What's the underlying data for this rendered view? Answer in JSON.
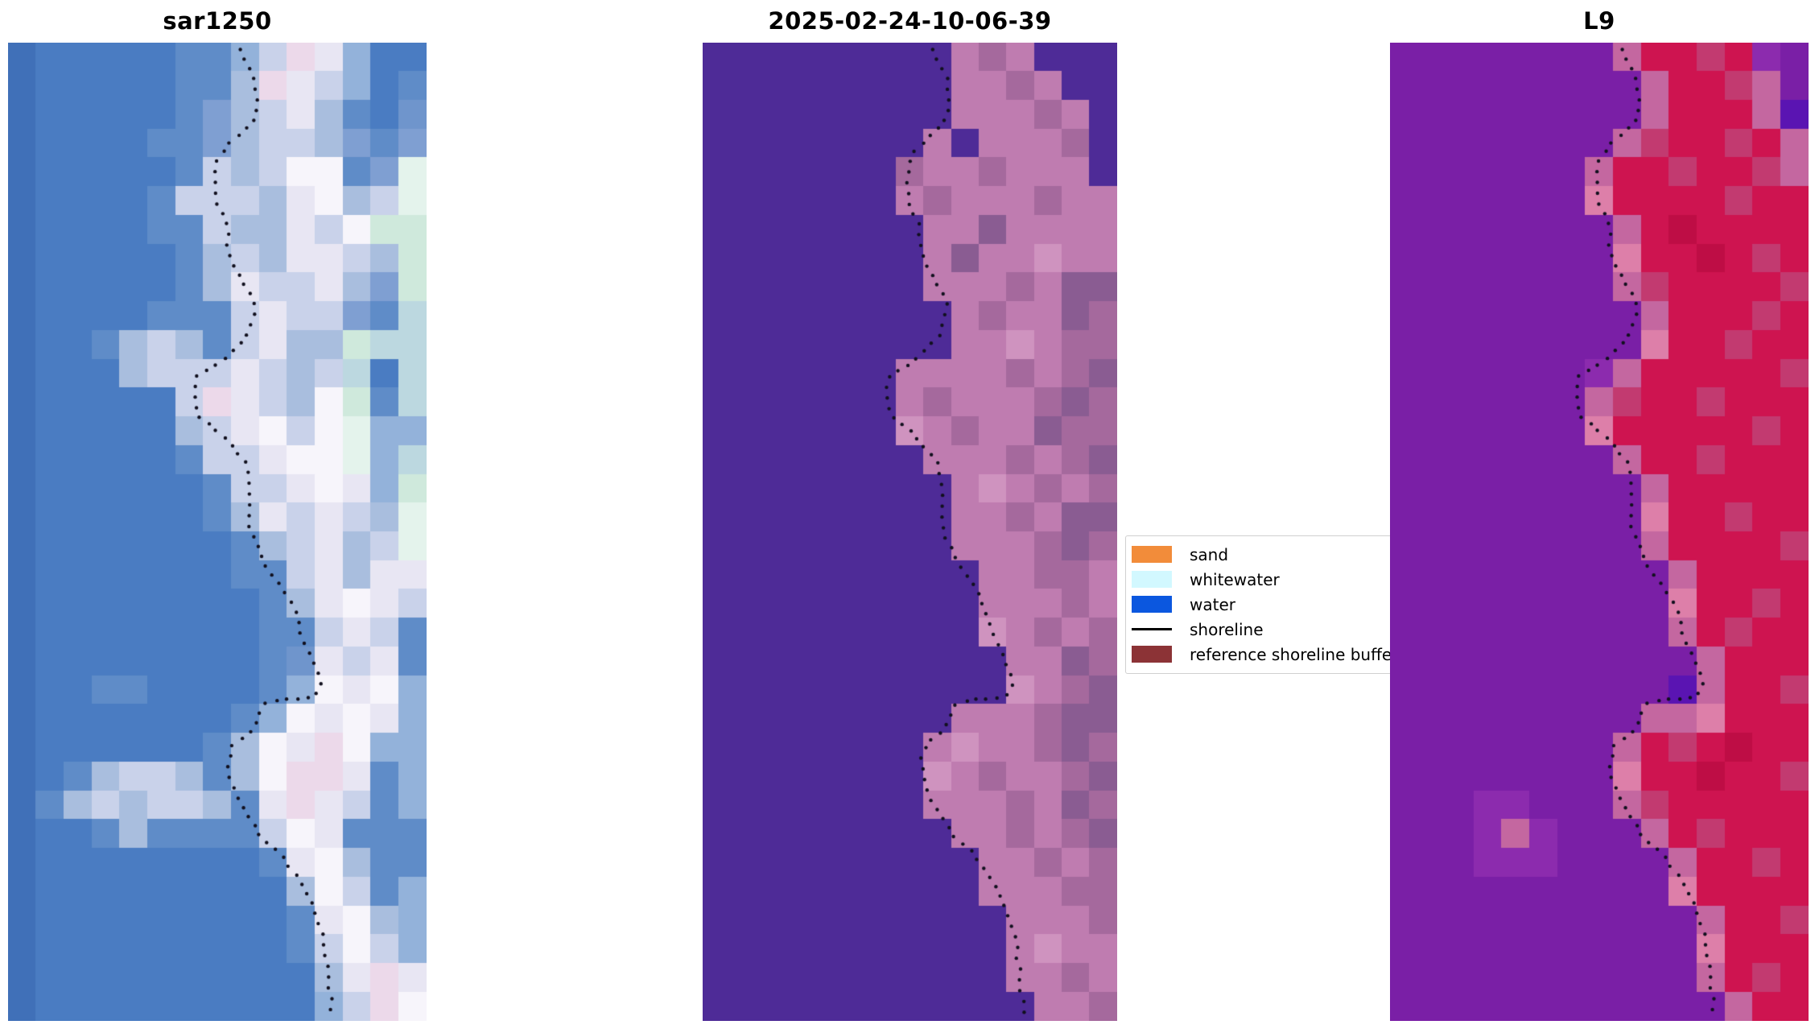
{
  "chart_data": {
    "type": "heatmap",
    "description": "Three-panel satellite shoreline comparison figure: SAR image, classified optical image, and Landsat-9 false-color image, each overlaid with a dotted detected shoreline.",
    "panels": [
      {
        "id": "sar1250",
        "title": "sar1250",
        "cols": 15,
        "rows": 34,
        "palette": {
          "1": "#4070b8",
          "2": "#4a7cc2",
          "3": "#5f8cc8",
          "4": "#7f9fd2",
          "5": "#a9bede",
          "6": "#c9d2ea",
          "7": "#e8e6f3",
          "8": "#f7f5fb",
          "9": "#ecd9ea",
          "a": "#bcd8e0",
          "b": "#cfe9dc",
          "c": "#e4f3ec",
          "d": "#6f95cc",
          "e": "#93b2da"
        },
        "grid": [
          "12222233e697e22",
          "122222335976e23",
          "12222234567532d",
          "122223345665434",
          "12222236568834c",
          "12222366657856c",
          "1222233655768bb",
          "12222235657765b",
          "12222235766754b",
          "12222333676643a",
          "122356536755baa",
          "122256667656a2a",
          "122222697658b3a",
          "122222567868cee",
          "122222366788cea",
          "1222222366787eb",
          "12222223576765c",
          "12222222356756c",
          "122222223367577",
          "122222222357876",
          "122222222336763",
          "1222222223d7673",
          "1223322223e878e",
          "122222223e8787e",
          "1222222358798ee",
          "12356653589973e",
          "13565665379763e",
          "122353333687333",
          "122222222378533",
          "12222222225863e",
          "12222222223785e",
          "12222222223686e",
          "122222222225797",
          "12222222222e698"
        ]
      },
      {
        "id": "2025-02-24-10-06-39",
        "title": "2025-02-24-10-06-39",
        "cols": 15,
        "rows": 34,
        "palette": {
          "p": "#4e2b97",
          "q": "#bf7cb0",
          "r": "#a5699d",
          "s": "#8a5c92",
          "t": "#cf93bf"
        },
        "grid": [
          "pppppppppqrqppp",
          "pppppppppqqrqpp",
          "pppppppppqqqrqp",
          "ppppppppqpqqqrp",
          "ppppppprqqrqqqp",
          "pppppppqrqqqrqq",
          "ppppppppqqsqqqq",
          "ppppppppqsqqtqq",
          "ppppppppqqqrqss",
          "pppppppppqrqqsr",
          "pppppppppqqtqrr",
          "pppppppqqqqrqrs",
          "pppppppqrqqqrsr",
          "ppppppptqrqqsrr",
          "ppppppppqqqrqrs",
          "pppppppppqtqrqr",
          "pppppppppqqrqss",
          "pppppppppqqqrsr",
          "ppppppppppqqrrq",
          "ppppppppppqqqrq",
          "pppppppppptqrqr",
          "pppppppppppqqsr",
          "ppppppppppptqrs",
          "pppppppppqqqrss",
          "ppppppppqtqqrsr",
          "pppppppptqrqqrs",
          "ppppppppqqqrqsr",
          "pppppppppqqrqrs",
          "ppppppppppqqrqr",
          "ppppppppppqqqrr",
          "pppppppppppqqqr",
          "pppppppppppqtqq",
          "pppppppppppqqrq",
          "ppppppppppppqqr"
        ]
      },
      {
        "id": "L9",
        "title": "L9",
        "cols": 15,
        "rows": 34,
        "palette": {
          "u": "#7a1fa6",
          "v": "#8c2bae",
          "w": "#c467a0",
          "x": "#ce1450",
          "y": "#dd7fa9",
          "z": "#c23a70",
          "k": "#e59fc0",
          "m": "#5a14b2",
          "D": "#be0d45"
        },
        "grid": [
          "uuuuuuuuwxxzxvu",
          "uuuuuuuuuwxxzwu",
          "uuuuuuuuuwxxxwm",
          "uuuuuuuuwzxxzxw",
          "uuuuuuuwxxzxxzw",
          "uuuuuuuyxxxxzxx",
          "uuuuuuuuwxDxxxx",
          "uuuuuuuuyxxDxzx",
          "uuuuuuuuwzxxxxz",
          "uuuuuuuuuwxxxzx",
          "uuuuuuuuuyxxzxx",
          "uuuuuuuvwxxxxxz",
          "uuuuuuuwzxxzxxx",
          "uuuuuuuyxxxxxzx",
          "uuuuuuuuwxxzxxx",
          "uuuuuuuuuwxxxxx",
          "uuuuuuuuuyxxzxx",
          "uuuuuuuuuwxxxxz",
          "uuuuuuuuuuwxxxx",
          "uuuuuuuuuuyxxzx",
          "uuuuuuuuuuwxzxx",
          "uuuuuuuuuuuwxxx",
          "uuuuuuuuuumwxxz",
          "uuuuuuuuuwwyxxx",
          "uuuuuuuuwxzxDxx",
          "uuuuuuuuyxxDxxz",
          "uuuvvuuuwzxxxxx",
          "uuuvwvuuuwxzxxx",
          "uuuvvvuuuuwxxzx",
          "uuuuuuuuuuyxxxx",
          "uuuuuuuuuuuwxxz",
          "uuuuuuuuuuuyxxx",
          "uuuuuuuuuuuwxzx",
          "uuuuuuuuuuuuwxx"
        ]
      }
    ],
    "shoreline": {
      "color": "#11101e",
      "dot_radius": 2.2,
      "dot_spacing": 13.5,
      "points": [
        [
          0.555,
          0.007
        ],
        [
          0.575,
          0.023
        ],
        [
          0.59,
          0.035
        ],
        [
          0.6,
          0.066
        ],
        [
          0.585,
          0.08
        ],
        [
          0.545,
          0.096
        ],
        [
          0.515,
          0.109
        ],
        [
          0.5,
          0.123
        ],
        [
          0.495,
          0.14
        ],
        [
          0.5,
          0.167
        ],
        [
          0.52,
          0.181
        ],
        [
          0.525,
          0.196
        ],
        [
          0.525,
          0.211
        ],
        [
          0.535,
          0.226
        ],
        [
          0.555,
          0.24
        ],
        [
          0.578,
          0.255
        ],
        [
          0.59,
          0.267
        ],
        [
          0.585,
          0.284
        ],
        [
          0.572,
          0.3
        ],
        [
          0.54,
          0.313
        ],
        [
          0.51,
          0.327
        ],
        [
          0.455,
          0.34
        ],
        [
          0.443,
          0.36
        ],
        [
          0.45,
          0.381
        ],
        [
          0.5,
          0.397
        ],
        [
          0.545,
          0.417
        ],
        [
          0.572,
          0.43
        ],
        [
          0.578,
          0.5
        ],
        [
          0.595,
          0.514
        ],
        [
          0.61,
          0.528
        ],
        [
          0.625,
          0.54
        ],
        [
          0.655,
          0.555
        ],
        [
          0.675,
          0.572
        ],
        [
          0.69,
          0.588
        ],
        [
          0.7,
          0.602
        ],
        [
          0.71,
          0.616
        ],
        [
          0.725,
          0.629
        ],
        [
          0.74,
          0.645
        ],
        [
          0.748,
          0.658
        ],
        [
          0.735,
          0.668
        ],
        [
          0.7,
          0.671
        ],
        [
          0.655,
          0.671
        ],
        [
          0.615,
          0.675
        ],
        [
          0.6,
          0.689
        ],
        [
          0.582,
          0.703
        ],
        [
          0.555,
          0.712
        ],
        [
          0.537,
          0.719
        ],
        [
          0.528,
          0.732
        ],
        [
          0.53,
          0.748
        ],
        [
          0.538,
          0.761
        ],
        [
          0.55,
          0.777
        ],
        [
          0.572,
          0.79
        ],
        [
          0.59,
          0.802
        ],
        [
          0.612,
          0.815
        ],
        [
          0.648,
          0.827
        ],
        [
          0.668,
          0.839
        ],
        [
          0.69,
          0.853
        ],
        [
          0.71,
          0.867
        ],
        [
          0.73,
          0.881
        ],
        [
          0.74,
          0.894
        ],
        [
          0.75,
          0.911
        ],
        [
          0.757,
          0.926
        ],
        [
          0.762,
          0.941
        ],
        [
          0.766,
          0.956
        ],
        [
          0.77,
          0.975
        ],
        [
          0.774,
          0.995
        ]
      ]
    },
    "legend": {
      "entries": [
        {
          "label": "sand",
          "type": "patch",
          "color": "#f28c3a"
        },
        {
          "label": "whitewater",
          "type": "patch",
          "color": "#d2f8ff"
        },
        {
          "label": "water",
          "type": "patch",
          "color": "#0b57df"
        },
        {
          "label": "shoreline",
          "type": "line",
          "color": "#000000"
        },
        {
          "label": "reference shoreline buffer",
          "type": "patch",
          "color": "#8c3336"
        }
      ]
    }
  }
}
